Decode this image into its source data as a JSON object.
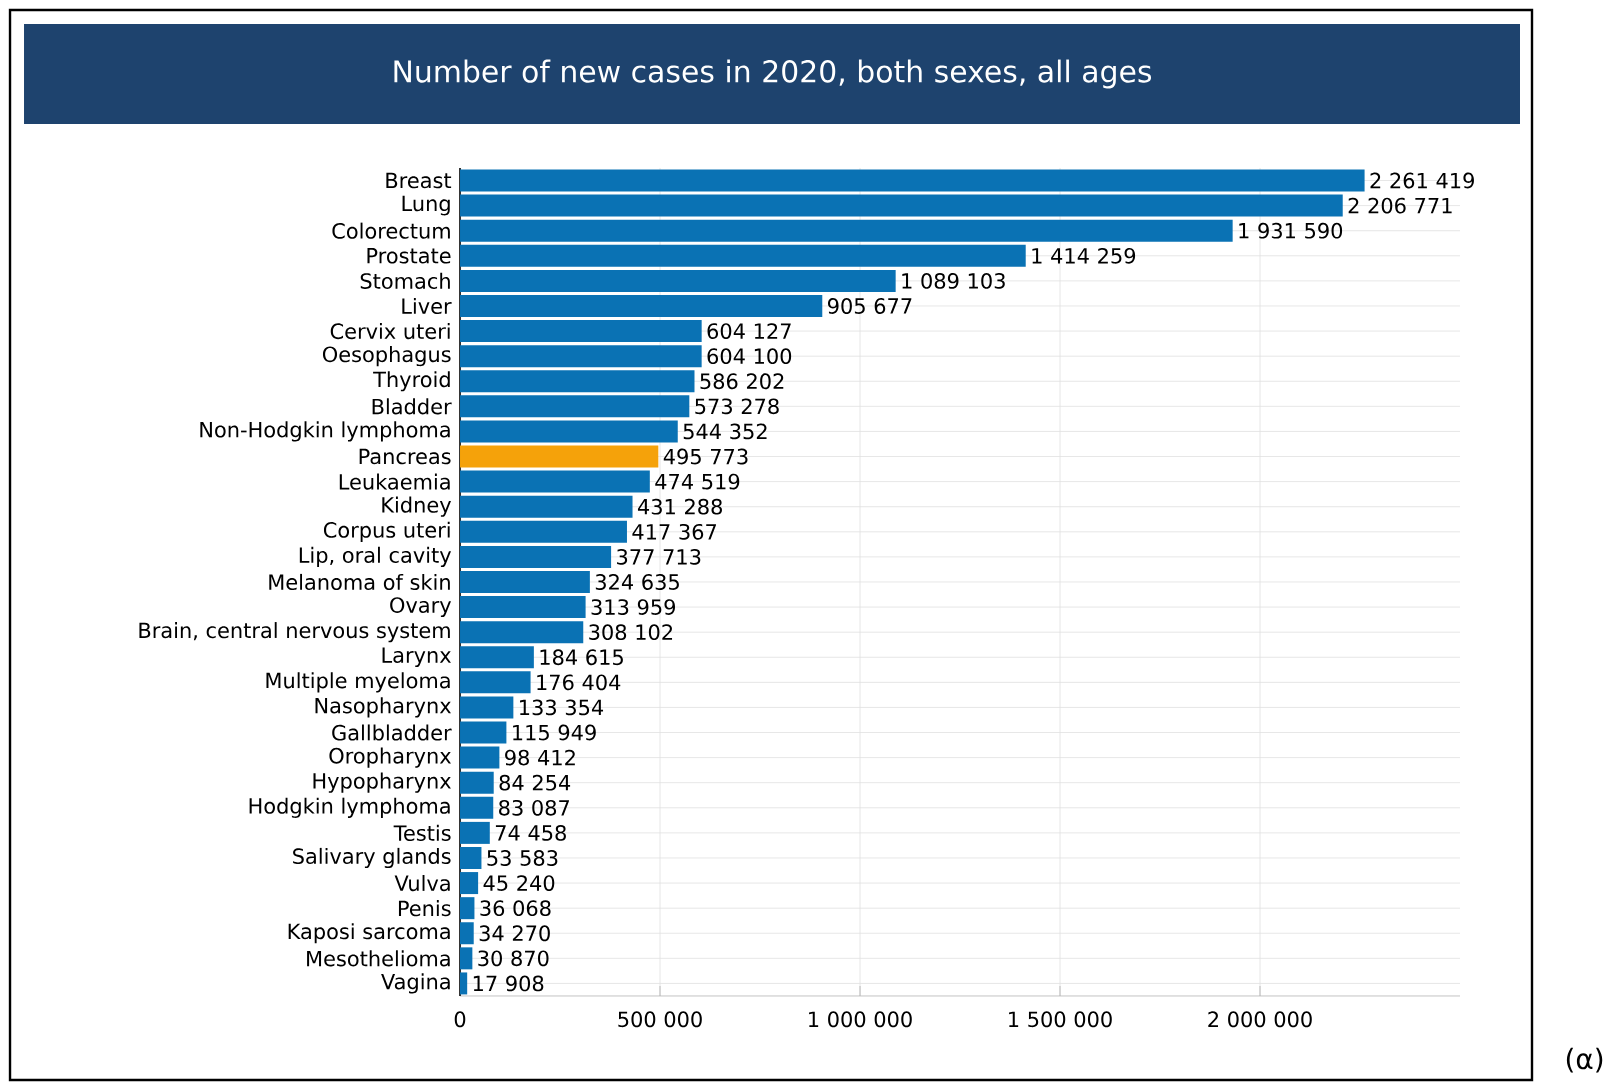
{
  "chart_data": {
    "type": "bar",
    "orientation": "horizontal",
    "title": "Number of new cases in 2020, both sexes, all ages",
    "categories": [
      "Breast",
      "Lung",
      "Colorectum",
      "Prostate",
      "Stomach",
      "Liver",
      "Cervix uteri",
      "Oesophagus",
      "Thyroid",
      "Bladder",
      "Non-Hodgkin lymphoma",
      "Pancreas",
      "Leukaemia",
      "Kidney",
      "Corpus uteri",
      "Lip, oral cavity",
      "Melanoma of skin",
      "Ovary",
      "Brain, central nervous system",
      "Larynx",
      "Multiple myeloma",
      "Nasopharynx",
      "Gallbladder",
      "Oropharynx",
      "Hypopharynx",
      "Hodgkin lymphoma",
      "Testis",
      "Salivary glands",
      "Vulva",
      "Penis",
      "Kaposi sarcoma",
      "Mesothelioma",
      "Vagina"
    ],
    "values": [
      2261419,
      2206771,
      1931590,
      1414259,
      1089103,
      905677,
      604127,
      604100,
      586202,
      573278,
      544352,
      495773,
      474519,
      431288,
      417367,
      377713,
      324635,
      313959,
      308102,
      184615,
      176404,
      133354,
      115949,
      98412,
      84254,
      83087,
      74458,
      53583,
      45240,
      36068,
      34270,
      30870,
      17908
    ],
    "value_labels": [
      "2 261 419",
      "2 206 771",
      "1 931 590",
      "1 414 259",
      "1 089 103",
      "905 677",
      "604 127",
      "604 100",
      "586 202",
      "573 278",
      "544 352",
      "495 773",
      "474 519",
      "431 288",
      "417 367",
      "377 713",
      "324 635",
      "313 959",
      "308 102",
      "184 615",
      "176 404",
      "133 354",
      "115 949",
      "98 412",
      "84 254",
      "83 087",
      "74 458",
      "53 583",
      "45 240",
      "36 068",
      "34 270",
      "30 870",
      "17 908"
    ],
    "colors": [
      "#0a72b4",
      "#0a72b4",
      "#0a72b4",
      "#0a72b4",
      "#0a72b4",
      "#0a72b4",
      "#0a72b4",
      "#0a72b4",
      "#0a72b4",
      "#0a72b4",
      "#0a72b4",
      "#f5a20a",
      "#0a72b4",
      "#0a72b4",
      "#0a72b4",
      "#0a72b4",
      "#0a72b4",
      "#0a72b4",
      "#0a72b4",
      "#0a72b4",
      "#0a72b4",
      "#0a72b4",
      "#0a72b4",
      "#0a72b4",
      "#0a72b4",
      "#0a72b4",
      "#0a72b4",
      "#0a72b4",
      "#0a72b4",
      "#0a72b4",
      "#0a72b4",
      "#0a72b4",
      "#0a72b4"
    ],
    "xlim": [
      0,
      2500000
    ],
    "xticks": [
      0,
      {
        "value": 500000,
        "label": "500 000"
      },
      {
        "value": 1000000,
        "label": "1 000 000"
      },
      {
        "value": 1500000,
        "label": "1 500 000"
      },
      {
        "value": 2000000,
        "label": "2 000 000"
      }
    ],
    "grid": true,
    "annotations": [
      "(α)"
    ]
  }
}
